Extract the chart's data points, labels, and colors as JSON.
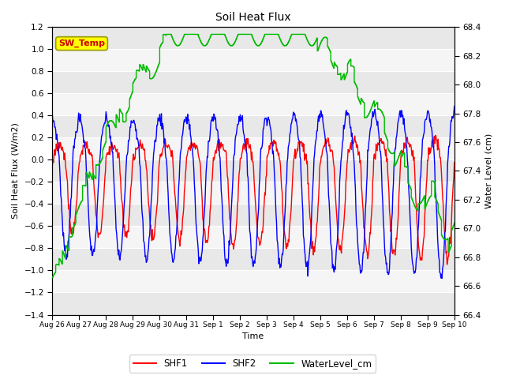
{
  "title": "Soil Heat Flux",
  "xlabel": "Time",
  "ylabel_left": "Soil Heat Flux (W/m2)",
  "ylabel_right": "Water Level (cm)",
  "ylim_left": [
    -1.4,
    1.2
  ],
  "ylim_right": [
    66.4,
    68.4
  ],
  "yticks_left": [
    -1.4,
    -1.2,
    -1.0,
    -0.8,
    -0.6,
    -0.4,
    -0.2,
    0.0,
    0.2,
    0.4,
    0.6,
    0.8,
    1.0,
    1.2
  ],
  "yticks_right": [
    66.4,
    66.6,
    66.8,
    67.0,
    67.2,
    67.4,
    67.6,
    67.8,
    68.0,
    68.2,
    68.4
  ],
  "xtick_labels": [
    "Aug 26",
    "Aug 27",
    "Aug 28",
    "Aug 29",
    "Aug 30",
    "Aug 31",
    "Sep 1",
    "Sep 2",
    "Sep 3",
    "Sep 4",
    "Sep 5",
    "Sep 6",
    "Sep 7",
    "Sep 8",
    "Sep 9",
    "Sep 10"
  ],
  "colors": {
    "SHF1": "#ff0000",
    "SHF2": "#0000ff",
    "WaterLevel_cm": "#00bb00",
    "SW_Temp_box": "#ffff00",
    "SW_Temp_text": "#cc0000",
    "background_dark": "#e8e8e8",
    "background_light": "#f5f5f5"
  },
  "SW_Temp_annotation": "SW_Temp",
  "n_days": 15,
  "points_per_day": 48
}
